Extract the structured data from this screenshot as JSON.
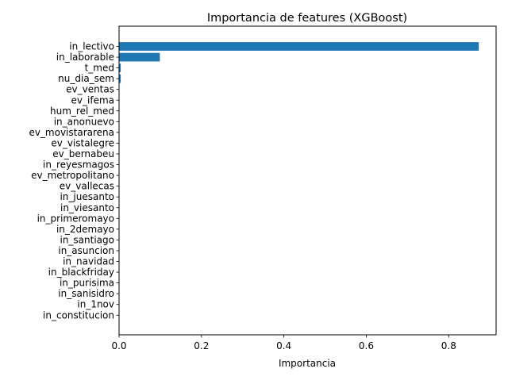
{
  "chart_data": {
    "type": "bar",
    "orientation": "horizontal",
    "title": "Importancia de features (XGBoost)",
    "xlabel": "Importancia",
    "ylabel": "",
    "xlim": [
      0,
      0.915
    ],
    "xticks": [
      0.0,
      0.2,
      0.4,
      0.6,
      0.8
    ],
    "xtick_labels": [
      "0.0",
      "0.2",
      "0.4",
      "0.6",
      "0.8"
    ],
    "grid": false,
    "bar_color": "#1f77b4",
    "categories": [
      "in_lectivo",
      "in_laborable",
      "t_med",
      "nu_dia_sem",
      "ev_ventas",
      "ev_ifema",
      "hum_rel_med",
      "in_anonuevo",
      "ev_movistararena",
      "ev_vistalegre",
      "ev_bernabeu",
      "in_reyesmagos",
      "ev_metropolitano",
      "ev_vallecas",
      "in_juesanto",
      "in_viesanto",
      "in_primeromayo",
      "in_2demayo",
      "in_santiago",
      "in_asuncion",
      "in_navidad",
      "in_blackfriday",
      "in_purisima",
      "in_sanisidro",
      "in_1nov",
      "in_constitucion"
    ],
    "values": [
      0.873,
      0.099,
      0.004,
      0.004,
      0.0,
      0.0,
      0.0,
      0.0,
      0.0,
      0.0,
      0.0,
      0.0,
      0.0,
      0.0,
      0.0,
      0.0,
      0.0,
      0.0,
      0.0,
      0.0,
      0.0,
      0.0,
      0.0,
      0.0,
      0.0,
      0.0
    ]
  }
}
